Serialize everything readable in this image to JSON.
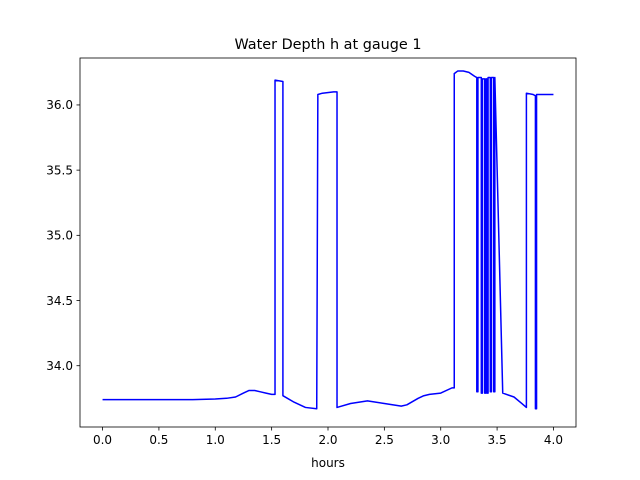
{
  "chart_data": {
    "type": "line",
    "title": "Water Depth h at gauge 1",
    "xlabel": "hours",
    "ylabel": "",
    "xlim": [
      -0.2,
      4.2
    ],
    "ylim": [
      33.53,
      36.36
    ],
    "x_ticks": [
      0.0,
      0.5,
      1.0,
      1.5,
      2.0,
      2.5,
      3.0,
      3.5,
      4.0
    ],
    "x_tick_labels": [
      "0.0",
      "0.5",
      "1.0",
      "1.5",
      "2.0",
      "2.5",
      "3.0",
      "3.5",
      "4.0"
    ],
    "y_ticks": [
      34.0,
      34.5,
      35.0,
      35.5,
      36.0
    ],
    "y_tick_labels": [
      "34.0",
      "34.5",
      "35.0",
      "35.5",
      "36.0"
    ],
    "grid": false,
    "series": [
      {
        "color": "#0000ff",
        "x": [
          0.0,
          0.5,
          0.8,
          1.0,
          1.1,
          1.18,
          1.25,
          1.3,
          1.35,
          1.4,
          1.45,
          1.5,
          1.53,
          1.53,
          1.6,
          1.6,
          1.7,
          1.8,
          1.9,
          1.9,
          1.91,
          1.95,
          2.05,
          2.08,
          2.08,
          2.2,
          2.35,
          2.5,
          2.65,
          2.7,
          2.8,
          2.85,
          2.9,
          3.0,
          3.1,
          3.12,
          3.12,
          3.15,
          3.2,
          3.25,
          3.3,
          3.32,
          3.32,
          3.33,
          3.33,
          3.36,
          3.36,
          3.37,
          3.37,
          3.39,
          3.39,
          3.4,
          3.4,
          3.41,
          3.41,
          3.42,
          3.42,
          3.44,
          3.44,
          3.45,
          3.45,
          3.47,
          3.47,
          3.48,
          3.48,
          3.55,
          3.65,
          3.72,
          3.76,
          3.76,
          3.82,
          3.84,
          3.84,
          3.85,
          3.85,
          3.9,
          4.0
        ],
        "y": [
          33.74,
          33.74,
          33.74,
          33.745,
          33.75,
          33.76,
          33.79,
          33.81,
          33.81,
          33.8,
          33.79,
          33.78,
          33.78,
          36.19,
          36.18,
          33.77,
          33.72,
          33.68,
          33.67,
          33.67,
          36.08,
          36.09,
          36.1,
          36.1,
          33.68,
          33.71,
          33.73,
          33.71,
          33.69,
          33.7,
          33.75,
          33.77,
          33.78,
          33.79,
          33.83,
          33.83,
          36.24,
          36.26,
          36.26,
          36.25,
          36.22,
          36.21,
          33.8,
          33.8,
          36.21,
          36.21,
          33.79,
          33.79,
          36.2,
          36.2,
          33.79,
          33.79,
          36.2,
          36.2,
          33.79,
          33.79,
          36.21,
          36.21,
          33.8,
          33.8,
          36.21,
          36.21,
          33.8,
          33.8,
          36.21,
          33.79,
          33.76,
          33.71,
          33.68,
          36.09,
          36.08,
          36.07,
          33.67,
          33.67,
          36.08,
          36.08,
          36.08
        ]
      }
    ]
  }
}
